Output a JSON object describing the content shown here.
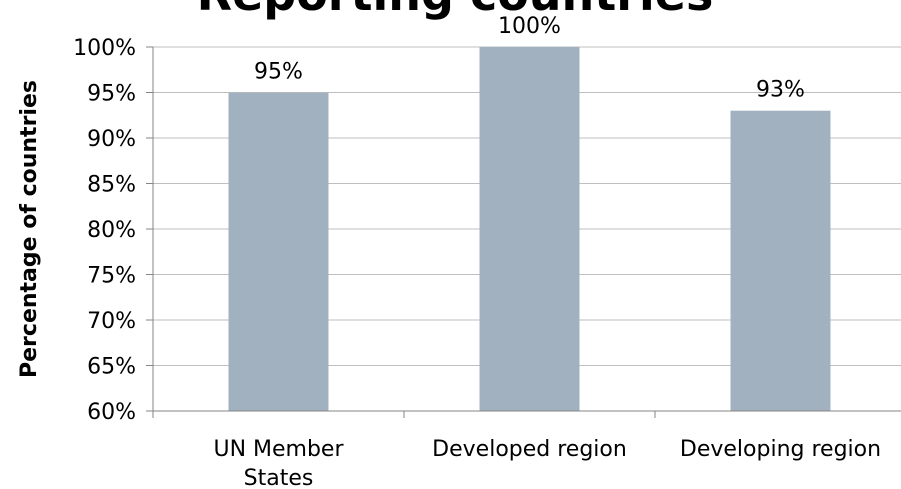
{
  "chart_data": {
    "type": "bar",
    "title": "Reporting countries",
    "xlabel": "",
    "ylabel": "Percentage of countries",
    "categories": [
      [
        "UN Member",
        "States"
      ],
      [
        "Developed region"
      ],
      [
        "Developing region"
      ]
    ],
    "values": [
      95,
      100,
      93
    ],
    "data_labels": [
      "95%",
      "100%",
      "93%"
    ],
    "yticks": [
      "60%",
      "65%",
      "70%",
      "75%",
      "80%",
      "85%",
      "90%",
      "95%",
      "100%"
    ],
    "ylim": [
      60,
      100
    ],
    "ystep": 5,
    "grid": true,
    "legend": "none",
    "bar_color": "#a2b1c0"
  }
}
